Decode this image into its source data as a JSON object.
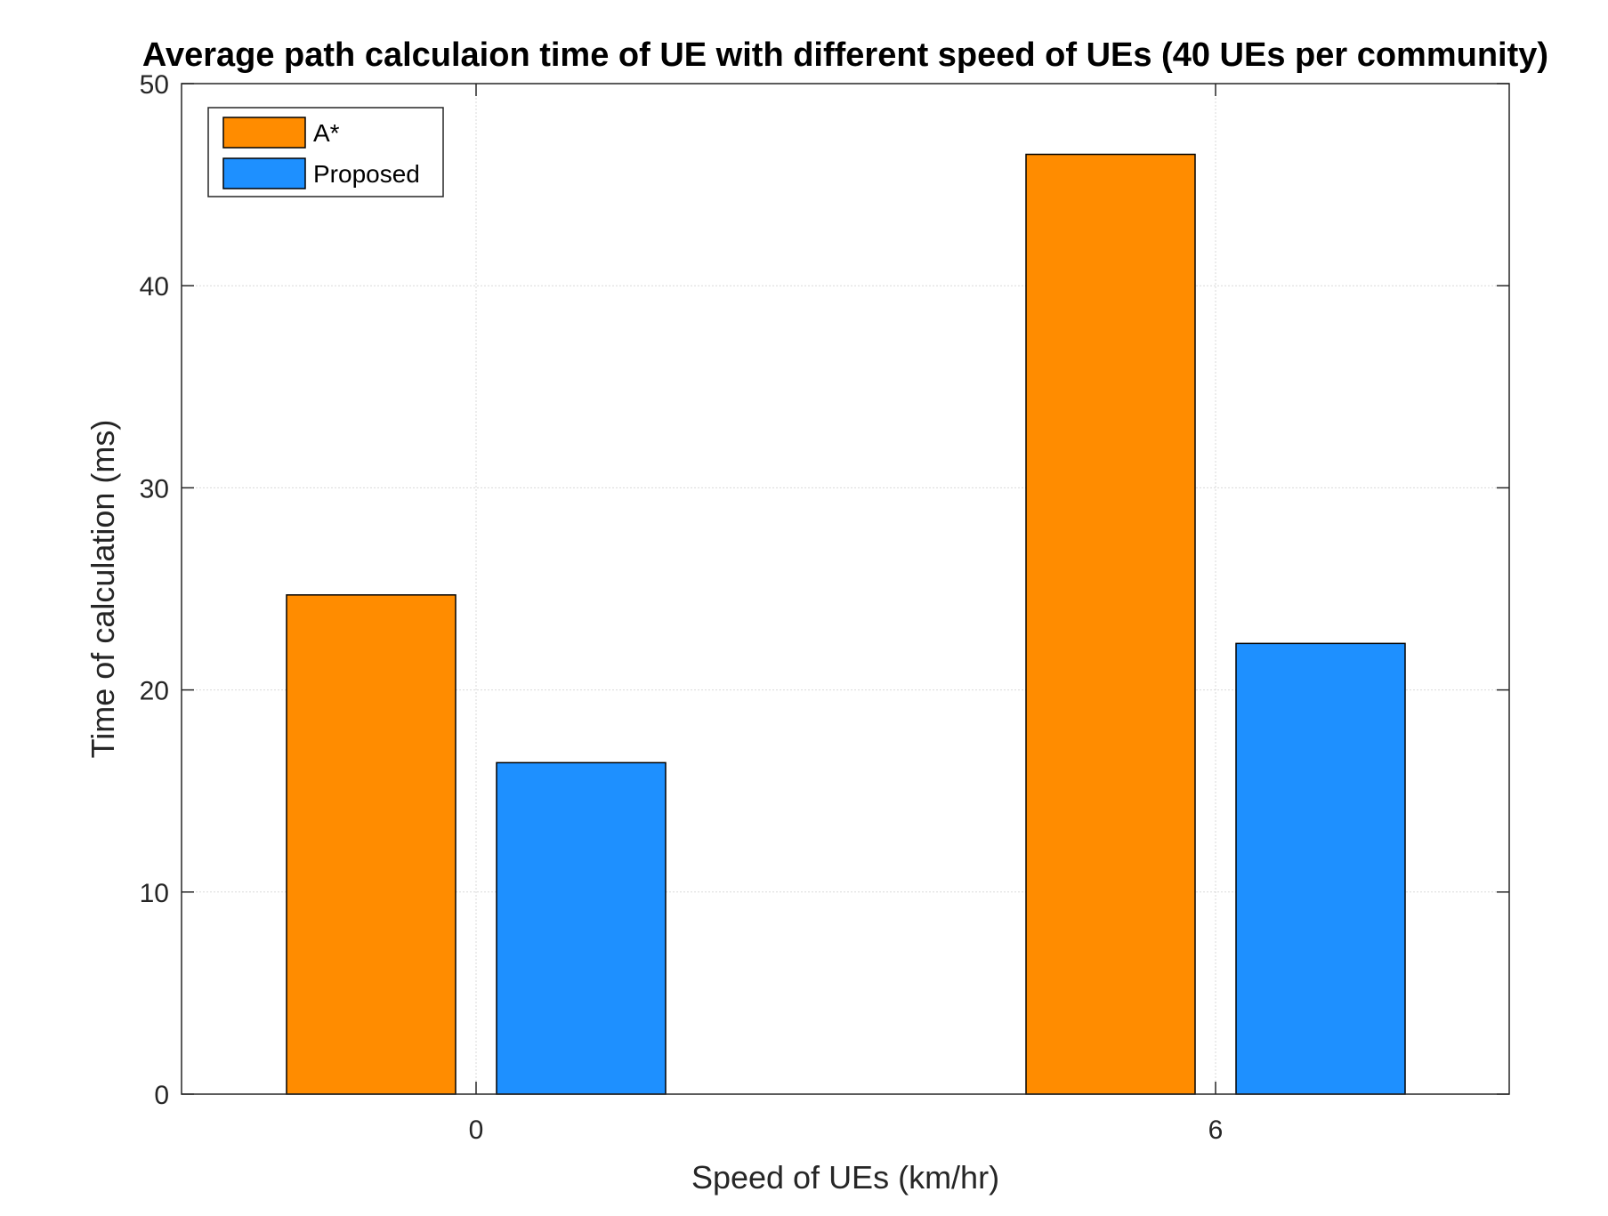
{
  "chart_data": {
    "type": "bar",
    "title": "Average path calculaion time of UE with different speed of UEs (40 UEs per community)",
    "xlabel": "Speed of UEs (km/hr)",
    "ylabel": "Time of calculation (ms)",
    "categories": [
      "0",
      "6"
    ],
    "series": [
      {
        "name": "A*",
        "color": "#FF8C00",
        "values": [
          24.7,
          46.5
        ]
      },
      {
        "name": "Proposed",
        "color": "#1E90FF",
        "values": [
          16.4,
          22.3
        ]
      }
    ],
    "ylim": [
      0,
      50
    ],
    "yticks": [
      0,
      10,
      20,
      30,
      40,
      50
    ],
    "grid": true,
    "legend_position": "top-left"
  }
}
